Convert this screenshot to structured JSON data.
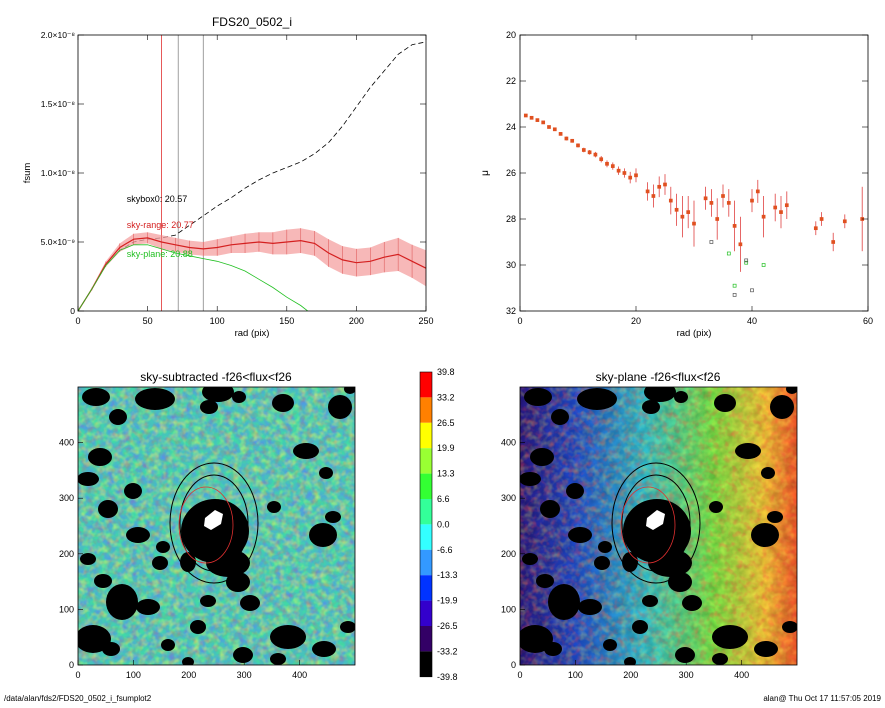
{
  "footer": {
    "path": "/data/alan/fds2/FDS20_0502_i_fsumplot2",
    "user_time": "alan@  Thu Oct 17 11:57:05 2019"
  },
  "chart_data": [
    {
      "type": "line",
      "title": "FDS20_0502_i",
      "xlabel": "rad (pix)",
      "ylabel": "fsum",
      "xlim": [
        0,
        250
      ],
      "ylim": [
        0,
        2e-08
      ],
      "xticks": [
        "0",
        "50",
        "100",
        "150",
        "200",
        "250"
      ],
      "yticks": [
        {
          "value": 0,
          "label": "0"
        },
        {
          "value": 5e-09,
          "label": "5.0×10⁻⁹"
        },
        {
          "value": 1e-08,
          "label": "1.0×10⁻⁸"
        },
        {
          "value": 1.5e-08,
          "label": "1.5×10⁻⁸"
        },
        {
          "value": 2e-08,
          "label": "2.0×10⁻⁸"
        }
      ],
      "annotations": [
        {
          "text": "skybox0: 20.57",
          "x": 35,
          "y": 7.9e-09,
          "color": "#000000"
        },
        {
          "text": "sky-range: 20.77",
          "x": 35,
          "y": 6e-09,
          "color": "#d42020"
        },
        {
          "text": "sky-plane: 20.88",
          "x": 35,
          "y": 3.9e-09,
          "color": "#22c022"
        }
      ],
      "vlines": [
        {
          "x": 60,
          "color": "#e03030"
        },
        {
          "x": 72,
          "color": "#888888"
        },
        {
          "x": 90,
          "color": "#888888"
        }
      ],
      "series": [
        {
          "style": "dashed",
          "color": "#000000",
          "x": [
            0,
            10,
            20,
            30,
            40,
            50,
            60,
            70,
            80,
            90,
            100,
            110,
            120,
            130,
            140,
            150,
            160,
            170,
            180,
            190,
            200,
            210,
            220,
            230,
            240,
            250
          ],
          "y": [
            0,
            1.6e-09,
            3.3e-09,
            4.4e-09,
            5e-09,
            5.2e-09,
            5.3e-09,
            5.5e-09,
            6.2e-09,
            6.9e-09,
            7.6e-09,
            8.2e-09,
            8.9e-09,
            9.5e-09,
            1e-08,
            1.04e-08,
            1.08e-08,
            1.14e-08,
            1.22e-08,
            1.34e-08,
            1.48e-08,
            1.62e-08,
            1.74e-08,
            1.86e-08,
            1.93e-08,
            1.95e-08
          ]
        },
        {
          "style": "solid",
          "color": "#d42020",
          "errors": true,
          "x": [
            0,
            10,
            20,
            30,
            40,
            50,
            60,
            70,
            80,
            90,
            100,
            110,
            120,
            130,
            140,
            150,
            160,
            170,
            180,
            190,
            200,
            210,
            220,
            230,
            240,
            250
          ],
          "y": [
            0,
            1.6e-09,
            3.4e-09,
            4.6e-09,
            5.2e-09,
            5.3e-09,
            5e-09,
            4.8e-09,
            4.6e-09,
            4.5e-09,
            4.6e-09,
            4.8e-09,
            4.9e-09,
            5e-09,
            4.9e-09,
            5e-09,
            5.1e-09,
            4.9e-09,
            4.2e-09,
            3.7e-09,
            3.5e-09,
            3.6e-09,
            3.9e-09,
            4.1e-09,
            3.6e-09,
            3.1e-09
          ],
          "err": [
            0,
            1e-10,
            2e-10,
            3e-10,
            4e-10,
            4e-10,
            5e-10,
            5e-10,
            5e-10,
            5e-10,
            6e-10,
            6e-10,
            7e-10,
            7e-10,
            8e-10,
            9e-10,
            9e-10,
            9e-10,
            1e-09,
            1e-09,
            1e-09,
            1e-09,
            1.1e-09,
            1.2e-09,
            1.2e-09,
            1.3e-09
          ]
        },
        {
          "style": "solid",
          "color": "#22c022",
          "x": [
            0,
            10,
            20,
            30,
            40,
            50,
            60,
            70,
            80,
            90,
            100,
            110,
            120,
            130,
            140,
            150,
            160,
            165
          ],
          "y": [
            0,
            1.6e-09,
            3.3e-09,
            4.4e-09,
            4.8e-09,
            4.8e-09,
            4.5e-09,
            4.2e-09,
            4e-09,
            3.8e-09,
            3.6e-09,
            3.3e-09,
            2.9e-09,
            2.3e-09,
            1.7e-09,
            1e-09,
            4e-10,
            0
          ]
        }
      ]
    },
    {
      "type": "scatter",
      "xlabel": "rad (pix)",
      "ylabel": "μ",
      "xlim": [
        0,
        60
      ],
      "ylim": [
        32,
        20
      ],
      "xticks": [
        "0",
        "20",
        "40",
        "60"
      ],
      "yticks": [
        "20",
        "22",
        "24",
        "26",
        "28",
        "30",
        "32"
      ],
      "series": [
        {
          "color": "#e05020",
          "errors": true,
          "x": [
            1,
            2,
            3,
            4,
            5,
            6,
            7,
            8,
            9,
            10,
            11,
            12,
            13,
            14,
            15,
            16,
            17,
            18,
            19,
            20,
            22,
            23,
            24,
            25,
            26,
            27,
            28,
            29,
            30,
            32,
            33,
            34,
            35,
            36,
            37,
            38,
            40,
            41,
            42,
            44,
            45,
            46,
            51,
            52,
            54,
            56,
            59
          ],
          "y": [
            23.5,
            23.6,
            23.7,
            23.8,
            24.0,
            24.1,
            24.3,
            24.5,
            24.6,
            24.8,
            25.0,
            25.1,
            25.2,
            25.4,
            25.6,
            25.7,
            25.9,
            26.0,
            26.2,
            26.1,
            26.8,
            27.0,
            26.6,
            26.5,
            27.2,
            27.6,
            27.9,
            27.7,
            28.2,
            27.1,
            27.3,
            28.0,
            27.0,
            27.3,
            28.3,
            29.1,
            27.2,
            26.8,
            27.9,
            27.5,
            27.7,
            27.4,
            28.4,
            28.0,
            29.0,
            28.1,
            28.0
          ],
          "err": [
            0.05,
            0.05,
            0.05,
            0.05,
            0.06,
            0.06,
            0.07,
            0.08,
            0.08,
            0.09,
            0.1,
            0.1,
            0.12,
            0.14,
            0.15,
            0.16,
            0.18,
            0.2,
            0.25,
            0.3,
            0.4,
            0.5,
            0.45,
            0.45,
            0.6,
            0.7,
            0.9,
            0.7,
            1.0,
            0.5,
            0.6,
            0.9,
            0.5,
            0.6,
            1.1,
            1.2,
            0.5,
            0.5,
            0.9,
            0.6,
            0.7,
            0.6,
            0.3,
            0.3,
            0.4,
            0.3,
            1.4
          ]
        },
        {
          "color": "#22c022",
          "x": [
            36,
            37,
            39,
            42
          ],
          "y": [
            29.5,
            30.9,
            29.9,
            30.0
          ]
        },
        {
          "color": "#555555",
          "x": [
            33,
            37,
            39,
            40
          ],
          "y": [
            29.0,
            31.3,
            29.8,
            31.1
          ]
        }
      ]
    },
    {
      "type": "heatmap",
      "title": "sky-subtracted -f26<flux<f26",
      "xlim": [
        0,
        500
      ],
      "ylim": [
        0,
        500
      ],
      "xticks": [
        "0",
        "100",
        "200",
        "300",
        "400"
      ],
      "yticks": [
        "0",
        "100",
        "200",
        "300",
        "400"
      ],
      "colorbar": {
        "labels": [
          "39.8",
          "33.2",
          "26.5",
          "19.9",
          "13.3",
          "6.6",
          "0.0",
          "-6.6",
          "-13.3",
          "-19.9",
          "-26.5",
          "-33.2",
          "-39.8"
        ],
        "colors": [
          "#ff0000",
          "#ff8000",
          "#ffff00",
          "#99ff33",
          "#33ff33",
          "#33ff99",
          "#33ffff",
          "#3399ff",
          "#0033ff",
          "#3300cc",
          "#330066",
          "#000000"
        ]
      }
    },
    {
      "type": "heatmap",
      "title": "sky-plane -f26<flux<f26",
      "xlim": [
        0,
        500
      ],
      "ylim": [
        0,
        500
      ],
      "xticks": [
        "0",
        "100",
        "200",
        "300",
        "400"
      ],
      "yticks": [
        "0",
        "100",
        "200",
        "300",
        "400"
      ]
    }
  ]
}
